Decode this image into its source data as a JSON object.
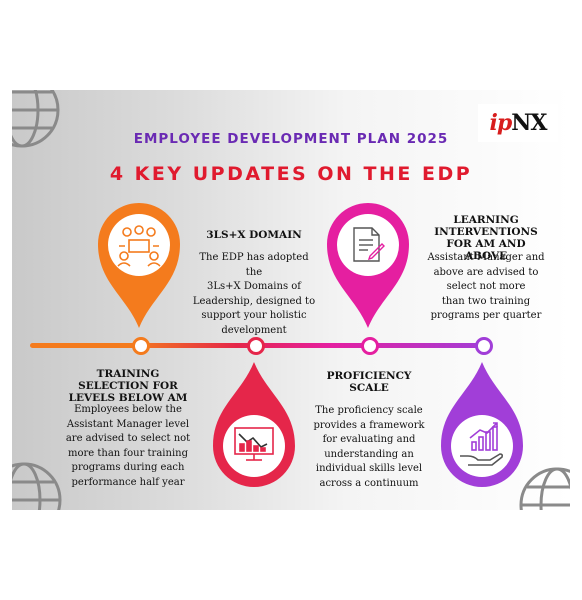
{
  "header": {
    "title": "EMPLOYEE DEVELOPMENT PLAN 2025",
    "subtitle": "4 KEY UPDATES ON THE EDP",
    "logo_ip": "ip",
    "logo_nx": "NX"
  },
  "colors": {
    "orange": "#f47b1d",
    "red": "#e5264a",
    "magenta": "#e51fa0",
    "purple": "#a13ed8",
    "title_purple": "#6a2ab3",
    "subtitle_red": "#e01a2e"
  },
  "items": [
    {
      "heading": "TRAINING SELECTION FOR LEVELS BELOW AM",
      "heading_lines": [
        "TRAINING",
        "SELECTION FOR",
        "LEVELS BELOW AM"
      ],
      "body_lines": [
        "Employees below the",
        "Assistant Manager level",
        "are advised to select not",
        "more than four training",
        "programs during each",
        "performance half year"
      ],
      "icon": "team-meeting-icon"
    },
    {
      "heading": "3LS+X DOMAIN",
      "heading_lines": [
        "3LS+X DOMAIN"
      ],
      "body_lines": [
        "The EDP has adopted the",
        "3Ls+X Domains of",
        "Leadership, designed to",
        "support your holistic",
        "development"
      ],
      "icon": "chart-monitor-icon"
    },
    {
      "heading": "PROFICIENCY SCALE",
      "heading_lines": [
        "PROFICIENCY",
        "SCALE"
      ],
      "body_lines": [
        "The proficiency scale",
        "provides a framework",
        "for evaluating and",
        "understanding an",
        "individual skills level",
        "across a continuum"
      ],
      "icon": "document-edit-icon"
    },
    {
      "heading": "LEARNING INTERVENTIONS FOR AM AND ABOVE",
      "heading_lines": [
        "LEARNING",
        "INTERVENTIONS",
        "FOR AM AND ABOVE"
      ],
      "body_lines": [
        "Assistant Manager and",
        "above are advised to",
        "select not more",
        "than two training",
        "programs per quarter"
      ],
      "icon": "growth-hand-icon"
    }
  ]
}
